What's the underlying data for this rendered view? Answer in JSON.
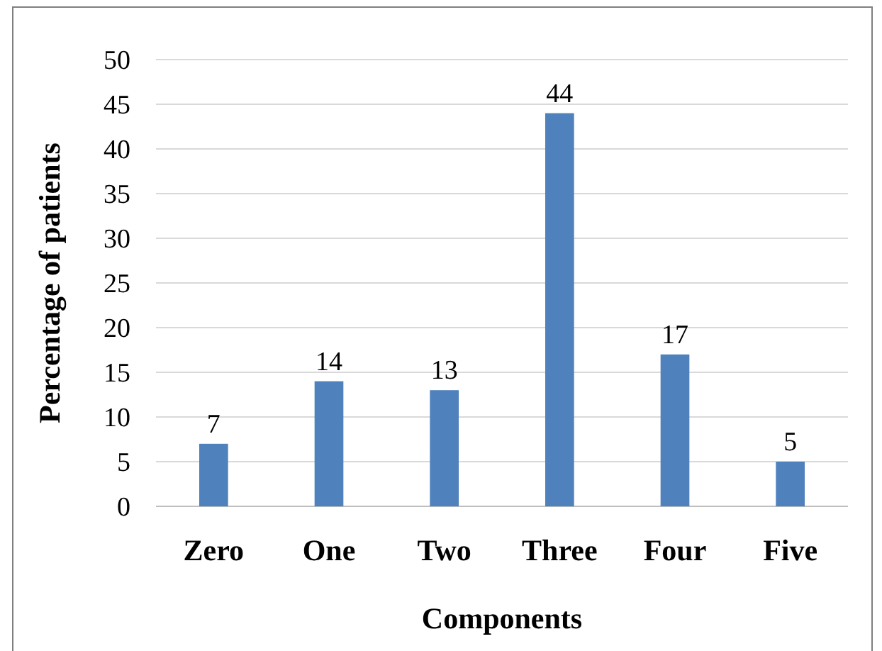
{
  "chart_data": {
    "type": "bar",
    "xlabel": "Components",
    "ylabel": "Percentage of patients",
    "categories": [
      "Zero",
      "One",
      "Two",
      "Three",
      "Four",
      "Five"
    ],
    "values": [
      7,
      14,
      13,
      44,
      17,
      5
    ],
    "color": "#4f81bd",
    "ylim": [
      0,
      50
    ],
    "yticks": [
      0,
      5,
      10,
      15,
      20,
      25,
      30,
      35,
      40,
      45,
      50
    ],
    "grid": "y",
    "data_labels": true
  }
}
